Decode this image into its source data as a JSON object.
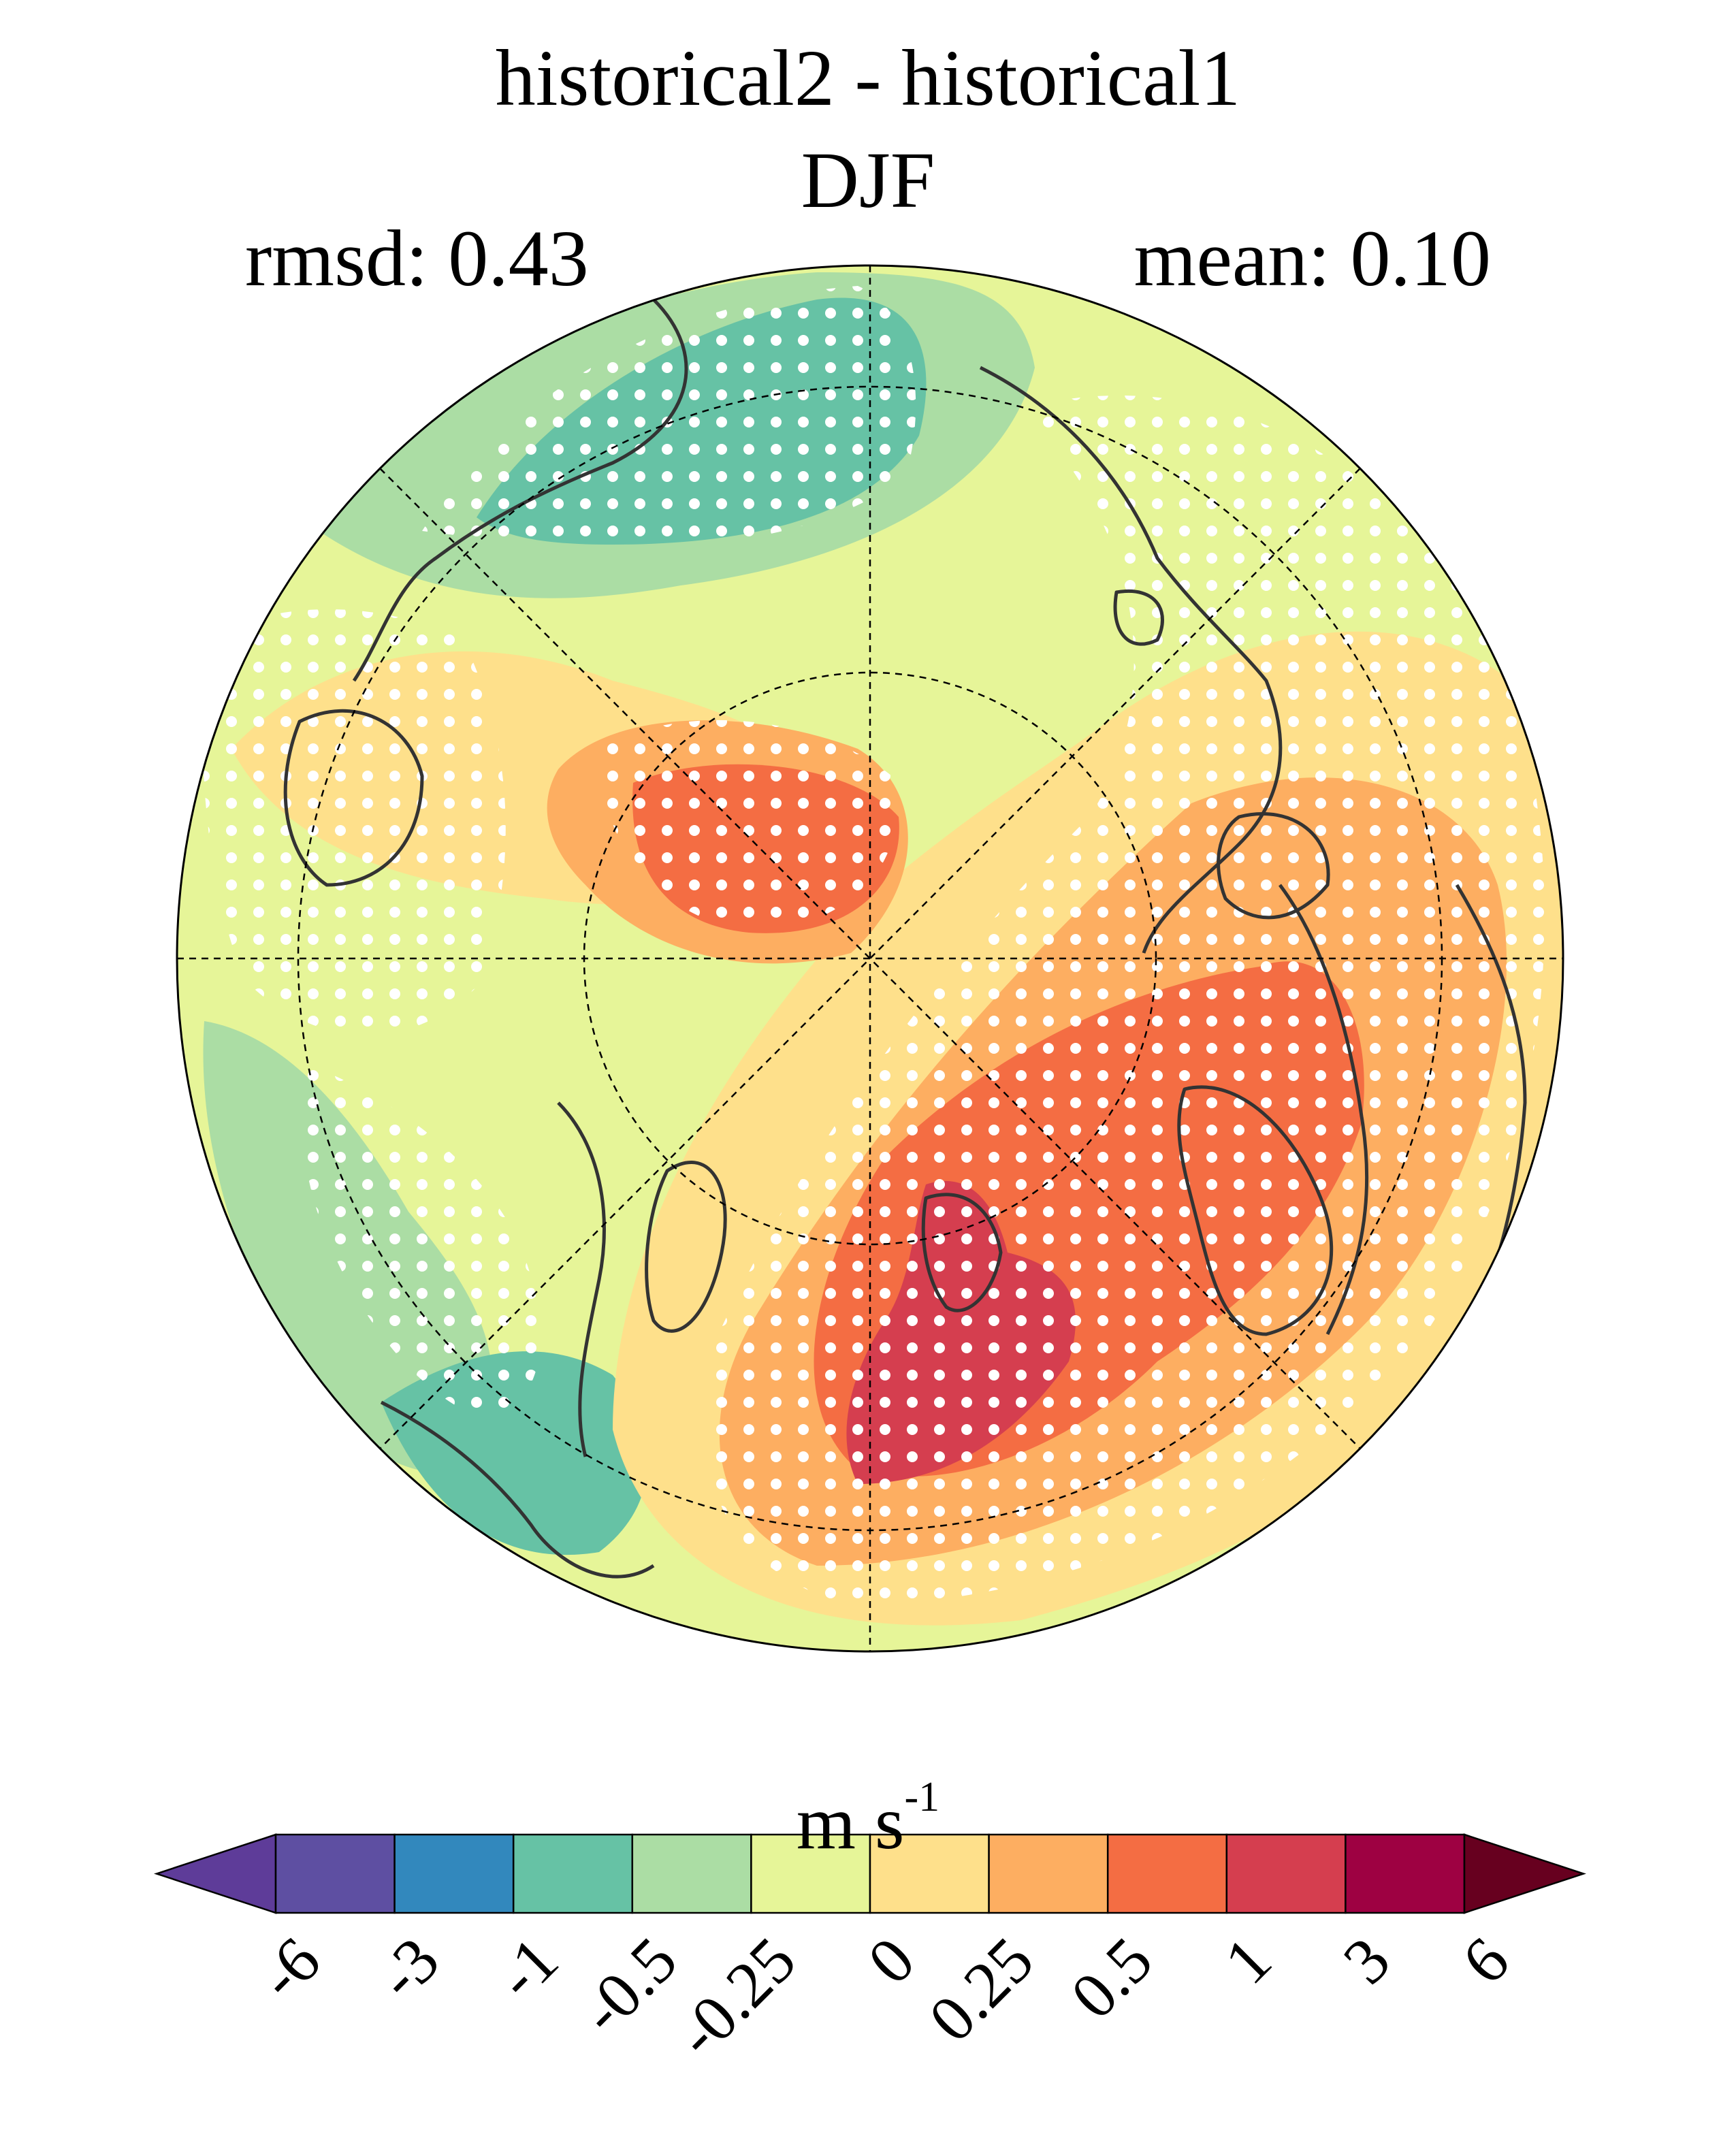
{
  "title": "historical2 - historical1",
  "season": "DJF",
  "rmsd_label": "rmsd: 0.43",
  "mean_label": "mean: 0.10",
  "colorbar": {
    "units_base": "m s",
    "units_exp": "-1",
    "ticks": [
      "-6",
      "-3",
      "-1",
      "-0.5",
      "-0.25",
      "0",
      "0.25",
      "0.5",
      "1",
      "3",
      "6"
    ],
    "colors": [
      "#5e3c99",
      "#5e4fa2",
      "#3288bd",
      "#66c2a5",
      "#abdda4",
      "#e6f598",
      "#fee08b",
      "#fdae61",
      "#f46d43",
      "#d53e4f",
      "#9e0142",
      "#67001f"
    ]
  },
  "map": {
    "projection": "north polar stereographic",
    "background_color": "#e6f598",
    "stippling_color": "#ffffff",
    "coastline_color": "#333333"
  }
}
